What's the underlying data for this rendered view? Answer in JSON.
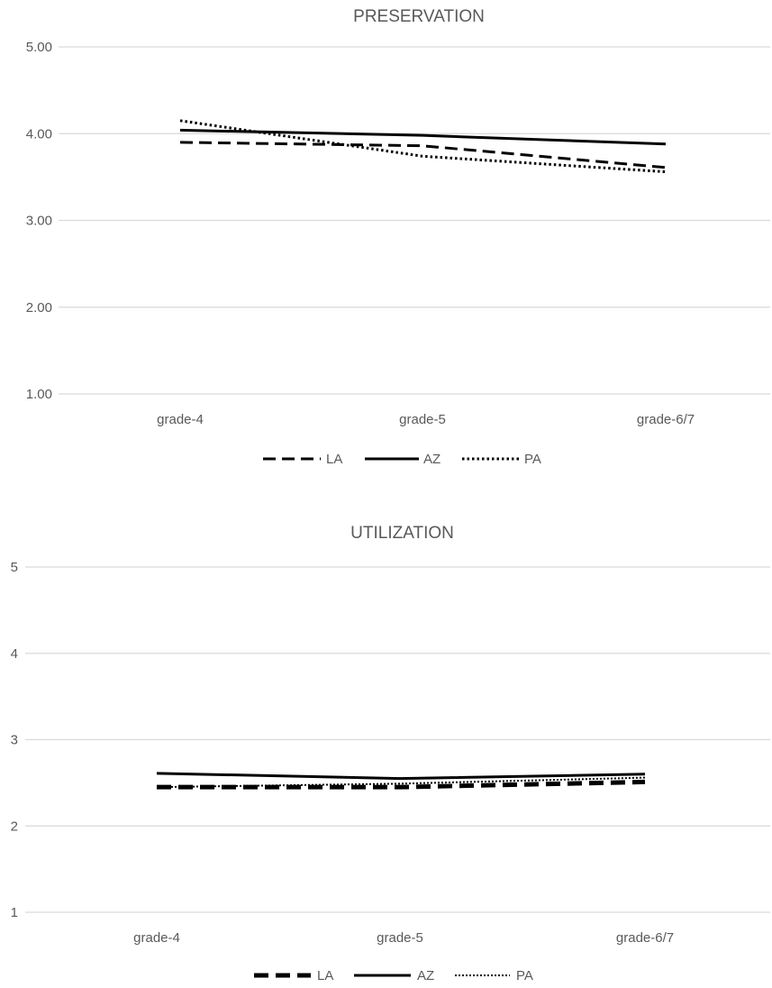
{
  "chart_data": [
    {
      "type": "line",
      "title": "PRESERVATION",
      "categories": [
        "grade-4",
        "grade-5",
        "grade-6/7"
      ],
      "y_tick_labels": [
        "1.00",
        "2.00",
        "3.00",
        "4.00",
        "5.00"
      ],
      "ylim": [
        1,
        5
      ],
      "grid": true,
      "legend_position": "bottom",
      "series": [
        {
          "name": "LA",
          "style": "dashed",
          "values": [
            3.9,
            3.86,
            3.61
          ],
          "color": "#000000"
        },
        {
          "name": "AZ",
          "style": "solid",
          "values": [
            4.04,
            3.98,
            3.88
          ],
          "color": "#000000"
        },
        {
          "name": "PA",
          "style": "dotted",
          "values": [
            4.15,
            3.74,
            3.56
          ],
          "color": "#000000"
        }
      ]
    },
    {
      "type": "line",
      "title": "UTILIZATION",
      "categories": [
        "grade-4",
        "grade-5",
        "grade-6/7"
      ],
      "y_tick_labels": [
        "1",
        "2",
        "3",
        "4",
        "5"
      ],
      "ylim": [
        1,
        5
      ],
      "grid": true,
      "legend_position": "bottom",
      "series": [
        {
          "name": "LA",
          "style": "dashed",
          "values": [
            2.45,
            2.45,
            2.51
          ],
          "color": "#000000"
        },
        {
          "name": "AZ",
          "style": "solid",
          "values": [
            2.61,
            2.55,
            2.6
          ],
          "color": "#000000"
        },
        {
          "name": "PA",
          "style": "dotted",
          "values": [
            2.45,
            2.49,
            2.56
          ],
          "color": "#000000"
        }
      ]
    }
  ]
}
